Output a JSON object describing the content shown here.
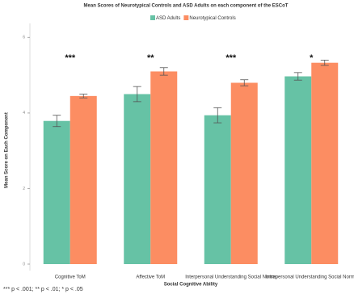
{
  "chart_data": {
    "type": "bar",
    "title": "Mean Scores of Neurotypical Controls and ASD Adults on each component of the ESCoT",
    "xlabel": "Social Cognitive Ability",
    "ylabel": "Mean Score on Each Component",
    "categories": [
      "Cognitive ToM",
      "Affective ToM",
      "Interpersonal Understanding Social Norms",
      "Intrapersonal Understanding Social Norms"
    ],
    "series": [
      {
        "name": "ASD Adults",
        "color": "#66c2a5",
        "values": [
          3.79,
          4.5,
          3.94,
          4.97
        ],
        "errors": [
          0.15,
          0.2,
          0.2,
          0.1
        ]
      },
      {
        "name": "Neurotypical Controls",
        "color": "#fc8d62",
        "values": [
          4.45,
          5.1,
          4.8,
          5.33
        ],
        "errors": [
          0.05,
          0.1,
          0.08,
          0.07
        ]
      }
    ],
    "annotations": [
      "***",
      "**",
      "***",
      "*"
    ],
    "footnote": "*** p < .001; ** p < .01; * p < .05",
    "ylim": [
      0,
      6.2
    ],
    "yticks": [
      0,
      2,
      4,
      6
    ],
    "legend": "top"
  }
}
